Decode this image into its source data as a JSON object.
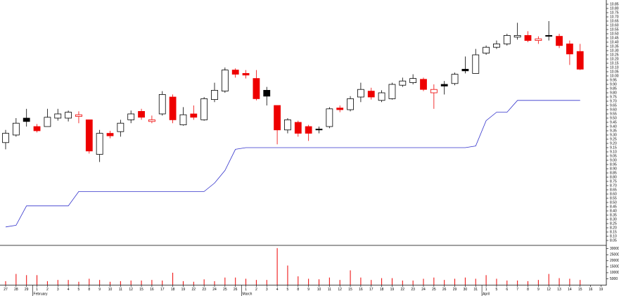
{
  "chart_data": {
    "type": "candlestick",
    "categories": [
      "27",
      "28",
      "29",
      "1",
      "2",
      "3",
      "4",
      "5",
      "8",
      "9",
      "10",
      "11",
      "12",
      "15",
      "16",
      "17",
      "18",
      "19",
      "22",
      "23",
      "24",
      "25",
      "26",
      "1",
      "2",
      "3",
      "4",
      "5",
      "8",
      "9",
      "10",
      "11",
      "12",
      "15",
      "16",
      "17",
      "18",
      "19",
      "22",
      "23",
      "24",
      "25",
      "26",
      "29",
      "30",
      "31",
      "1",
      "5",
      "6",
      "7",
      "8",
      "9",
      "12",
      "13",
      "14",
      "15",
      "16",
      "19"
    ],
    "months": [
      null,
      null,
      null,
      "February",
      null,
      null,
      null,
      null,
      null,
      null,
      null,
      null,
      null,
      null,
      null,
      null,
      null,
      null,
      null,
      null,
      null,
      null,
      null,
      "March",
      null,
      null,
      null,
      null,
      null,
      null,
      null,
      null,
      null,
      null,
      null,
      null,
      null,
      null,
      null,
      null,
      null,
      null,
      null,
      null,
      null,
      null,
      "April",
      null,
      null,
      null,
      null,
      null,
      null,
      null,
      null,
      null,
      null,
      null
    ],
    "open": [
      9.21,
      9.3,
      9.5,
      9.4,
      9.4,
      9.5,
      9.5,
      9.54,
      9.48,
      9.07,
      9.32,
      9.34,
      9.48,
      9.58,
      9.48,
      9.55,
      9.75,
      9.42,
      9.55,
      9.48,
      9.72,
      9.82,
      10.07,
      10.03,
      9.97,
      9.83,
      9.65,
      9.36,
      9.45,
      9.4,
      9.37,
      9.4,
      9.62,
      9.6,
      9.75,
      9.82,
      9.71,
      9.73,
      9.89,
      9.92,
      9.96,
      9.84,
      9.9,
      9.91,
      10.08,
      10.03,
      10.27,
      10.34,
      10.38,
      10.46,
      10.48,
      10.44,
      10.48,
      10.47,
      10.38,
      10.29,
      null,
      null
    ],
    "high": [
      9.36,
      9.5,
      9.61,
      9.43,
      9.61,
      9.61,
      9.59,
      9.58,
      9.48,
      9.36,
      9.35,
      9.48,
      9.59,
      9.61,
      9.53,
      9.82,
      9.78,
      9.63,
      9.65,
      9.75,
      9.92,
      10.1,
      10.09,
      10.07,
      10.07,
      9.87,
      9.65,
      9.5,
      9.47,
      9.42,
      9.4,
      9.63,
      9.65,
      9.76,
      9.92,
      9.86,
      9.83,
      9.92,
      9.98,
      10.02,
      9.98,
      9.9,
      9.94,
      10.04,
      10.23,
      10.32,
      10.36,
      10.42,
      10.5,
      10.63,
      10.53,
      10.47,
      10.65,
      10.5,
      10.42,
      10.38,
      null,
      null
    ],
    "low": [
      9.13,
      9.28,
      9.4,
      9.33,
      9.4,
      9.47,
      9.46,
      9.44,
      9.08,
      8.98,
      9.26,
      9.28,
      9.44,
      9.48,
      9.44,
      9.53,
      9.44,
      9.41,
      9.48,
      9.47,
      9.69,
      9.8,
      9.98,
      9.97,
      9.71,
      9.65,
      9.19,
      9.32,
      9.28,
      9.23,
      9.32,
      9.38,
      9.57,
      9.58,
      9.69,
      9.72,
      9.69,
      9.72,
      9.87,
      9.9,
      9.82,
      9.61,
      9.78,
      9.89,
      10.03,
      10.03,
      10.25,
      10.32,
      10.36,
      10.43,
      10.4,
      10.38,
      10.42,
      10.33,
      10.13,
      10.07,
      null,
      null
    ],
    "close": [
      9.32,
      9.44,
      9.46,
      9.35,
      9.51,
      9.55,
      9.57,
      9.52,
      9.11,
      9.32,
      9.29,
      9.44,
      9.55,
      9.51,
      9.46,
      9.78,
      9.48,
      9.54,
      9.51,
      9.73,
      9.83,
      10.07,
      10.02,
      10.01,
      9.73,
      9.76,
      9.36,
      9.48,
      9.32,
      9.32,
      9.36,
      9.61,
      9.6,
      9.73,
      9.84,
      9.75,
      9.8,
      9.9,
      9.94,
      9.97,
      9.84,
      9.8,
      9.88,
      10.02,
      10.06,
      10.25,
      10.34,
      10.38,
      10.48,
      10.48,
      10.42,
      10.42,
      10.47,
      10.36,
      10.26,
      10.08,
      null,
      null
    ],
    "body_fill": [
      "#ffffff",
      "#ffffff",
      "#000000",
      "#ee0000",
      "#ffffff",
      "#ffffff",
      "#ffffff",
      "#ffffff",
      "#ee0000",
      "#ffffff",
      "#ee0000",
      "#ffffff",
      "#ffffff",
      "#ee0000",
      "#ffffff",
      "#ffffff",
      "#ee0000",
      "#ffffff",
      "#ee0000",
      "#ffffff",
      "#ffffff",
      "#ffffff",
      "#ee0000",
      "#ee0000",
      "#ee0000",
      "#000000",
      "#ee0000",
      "#ffffff",
      "#ee0000",
      "#ee0000",
      "#000000",
      "#ffffff",
      "#ee0000",
      "#ffffff",
      "#ffffff",
      "#ee0000",
      "#ffffff",
      "#ffffff",
      "#ffffff",
      "#ffffff",
      "#ee0000",
      "#ffffff",
      "#000000",
      "#ffffff",
      "#000000",
      "#ffffff",
      "#ffffff",
      "#ffffff",
      "#ffffff",
      "#ffffff",
      "#ee0000",
      "#ffffff",
      "#000000",
      "#ee0000",
      "#ee0000",
      "#ee0000",
      null,
      null
    ],
    "body_stroke": [
      "#000000",
      "#000000",
      "#000000",
      "#ee0000",
      "#000000",
      "#000000",
      "#000000",
      "#ee0000",
      "#ee0000",
      "#000000",
      "#ee0000",
      "#000000",
      "#000000",
      "#ee0000",
      "#ee0000",
      "#000000",
      "#ee0000",
      "#000000",
      "#ee0000",
      "#000000",
      "#000000",
      "#000000",
      "#ee0000",
      "#ee0000",
      "#ee0000",
      "#000000",
      "#ee0000",
      "#000000",
      "#ee0000",
      "#ee0000",
      "#000000",
      "#000000",
      "#ee0000",
      "#000000",
      "#000000",
      "#ee0000",
      "#000000",
      "#000000",
      "#000000",
      "#000000",
      "#ee0000",
      "#ee0000",
      "#000000",
      "#000000",
      "#000000",
      "#000000",
      "#000000",
      "#000000",
      "#000000",
      "#000000",
      "#ee0000",
      "#ee0000",
      "#000000",
      "#ee0000",
      "#ee0000",
      "#ee0000",
      null,
      null
    ],
    "ylim": [
      8.0,
      10.9
    ],
    "yticks": [
      8.05,
      {
        "value": 8.1,
        "label": "8.10"
      },
      8.15,
      {
        "value": 8.2,
        "label": "8.20"
      },
      8.25,
      {
        "value": 8.3,
        "label": "8.30"
      },
      8.35,
      {
        "value": 8.4,
        "label": "8.40"
      },
      8.45,
      {
        "value": 8.5,
        "label": "8.50"
      },
      8.55,
      {
        "value": 8.6,
        "label": "8.60"
      },
      8.65,
      {
        "value": 8.7,
        "label": "8.70"
      },
      8.75,
      {
        "value": 8.8,
        "label": "8.80"
      },
      8.85,
      {
        "value": 8.9,
        "label": "8.90"
      },
      8.95,
      {
        "value": 9,
        "label": "9.00"
      },
      9.05,
      {
        "value": 9.1,
        "label": "9.10"
      },
      9.15,
      {
        "value": 9.2,
        "label": "9.20"
      },
      9.25,
      {
        "value": 9.3,
        "label": "9.30"
      },
      9.35,
      {
        "value": 9.4,
        "label": "9.40"
      },
      9.45,
      {
        "value": 9.5,
        "label": "9.50"
      },
      9.55,
      {
        "value": 9.6,
        "label": "9.60"
      },
      9.65,
      {
        "value": 9.7,
        "label": "9.70"
      },
      9.75,
      {
        "value": 9.8,
        "label": "9.80"
      },
      9.85,
      {
        "value": 9.9,
        "label": "9.90"
      },
      9.95,
      {
        "value": 10,
        "label": "10.00"
      },
      10.05,
      {
        "value": 10.1,
        "label": "10.10"
      },
      10.15,
      {
        "value": 10.2,
        "label": "10.20"
      },
      10.25,
      {
        "value": 10.3,
        "label": "10.30"
      },
      10.35,
      {
        "value": 10.4,
        "label": "10.40"
      },
      10.45,
      {
        "value": 10.5,
        "label": "10.50"
      },
      10.55,
      {
        "value": 10.6,
        "label": "10.60"
      },
      10.65,
      {
        "value": 10.7,
        "label": "10.70"
      },
      10.75,
      {
        "value": 10.8,
        "label": "10.80"
      },
      10.85
    ],
    "line": {
      "color": "#3333cc",
      "values": [
        8.21,
        8.23,
        8.46,
        8.46,
        8.46,
        8.46,
        8.46,
        8.63,
        8.63,
        8.63,
        8.63,
        8.63,
        8.63,
        8.63,
        8.63,
        8.63,
        8.63,
        8.63,
        8.63,
        8.63,
        8.73,
        8.88,
        9.13,
        9.15,
        9.15,
        9.15,
        9.15,
        9.15,
        9.15,
        9.15,
        9.15,
        9.15,
        9.15,
        9.15,
        9.15,
        9.15,
        9.15,
        9.15,
        9.15,
        9.15,
        9.15,
        9.15,
        9.15,
        9.15,
        9.15,
        9.17,
        9.47,
        9.57,
        9.57,
        9.71,
        9.71,
        9.71,
        9.71,
        9.71,
        9.71,
        9.71,
        null,
        null
      ]
    },
    "volume": {
      "color": "#ee0000",
      "ylim": [
        0,
        31000
      ],
      "yticks": [
        5000,
        10000,
        15000,
        20000,
        25000,
        30000
      ],
      "values": [
        3000,
        9000,
        8000,
        8000,
        3000,
        4000,
        4000,
        2500,
        5000,
        4000,
        2500,
        3000,
        3500,
        3500,
        4000,
        3500,
        10000,
        3000,
        2500,
        4500,
        3000,
        6000,
        6000,
        5000,
        4000,
        4000,
        30500,
        16000,
        7000,
        5000,
        4500,
        6000,
        4000,
        12000,
        6000,
        4000,
        5500,
        5500,
        3500,
        3500,
        5000,
        6000,
        4000,
        5000,
        6000,
        5000,
        8000,
        5000,
        3500,
        3500,
        3000,
        4000,
        9000,
        5500,
        5000,
        4000,
        null,
        null
      ]
    }
  }
}
